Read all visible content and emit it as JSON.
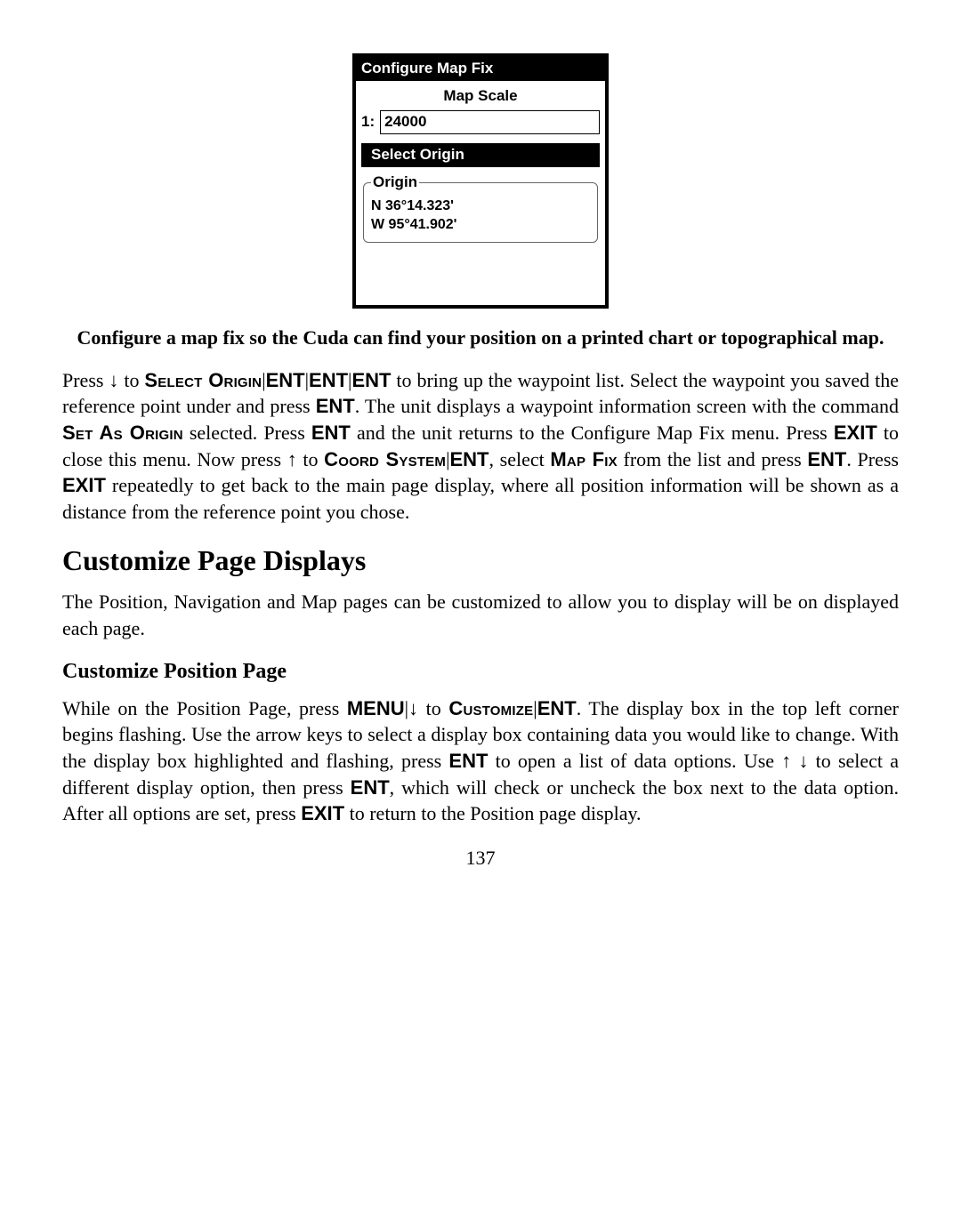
{
  "screenshot": {
    "title": "Configure Map Fix",
    "mapScaleLabel": "Map Scale",
    "scalePrefix": "1:",
    "scaleValue": "24000",
    "selectOrigin": "Select Origin",
    "originLegend": "Origin",
    "lat": "N  36°14.323'",
    "lon": "W  95°41.902'"
  },
  "caption": "Configure a map fix so the Cuda can find your position on a printed chart or topographical map.",
  "p1": {
    "t1": "Press ",
    "arrow1": "↓",
    "t2": " to ",
    "sc1": "Select Origin",
    "t3": "|",
    "ui1": "ENT",
    "t4": "|",
    "ui2": "ENT",
    "t5": "|",
    "ui3": "ENT",
    "t6": " to bring up the waypoint list. Select the waypoint you saved the reference point under and press ",
    "ui4": "ENT",
    "t7": ". The unit displays a waypoint information screen with the command ",
    "sc2": "Set As Origin",
    "t8": " selected. Press ",
    "ui5": "ENT",
    "t9": " and the unit returns to the Configure Map Fix menu. Press ",
    "ui6": "EXIT",
    "t10": " to close this menu. Now press ",
    "arrow2": "↑",
    "t11": " to ",
    "sc3": "Coord System",
    "t12": "|",
    "ui7": "ENT",
    "t13": ", select ",
    "sc4": "Map Fix",
    "t14": " from the list and press ",
    "ui8": "ENT",
    "t15": ". Press ",
    "ui9": "EXIT",
    "t16": " repeatedly to get back to the main page display, where all position information will be shown as a distance from the reference point you chose."
  },
  "h2": "Customize Page Displays",
  "p2": "The Position, Navigation and Map pages can be customized to allow you to display will be on displayed each page.",
  "h3": "Customize Position Page",
  "p3": {
    "t1": "While on the Position Page, press ",
    "ui1": "MENU",
    "t2": "|",
    "arrow1": "↓",
    "t3": " to ",
    "sc1": "Customize",
    "t4": "|",
    "ui2": "ENT",
    "t5": ". The display box in the top left corner begins flashing. Use the arrow keys to select a display box containing data you would like to change. With the display box highlighted and flashing, press ",
    "ui3": "ENT",
    "t6": " to open a list of data options. Use ",
    "arrow2": "↑",
    "t7": " ",
    "arrow3": "↓",
    "t8": " to select a different display option, then press ",
    "ui4": "ENT",
    "t9": ", which will check or uncheck the box next to the data option. After all options are set, press ",
    "ui5": "EXIT",
    "t10": " to return to the Position page display."
  },
  "pageNumber": "137"
}
